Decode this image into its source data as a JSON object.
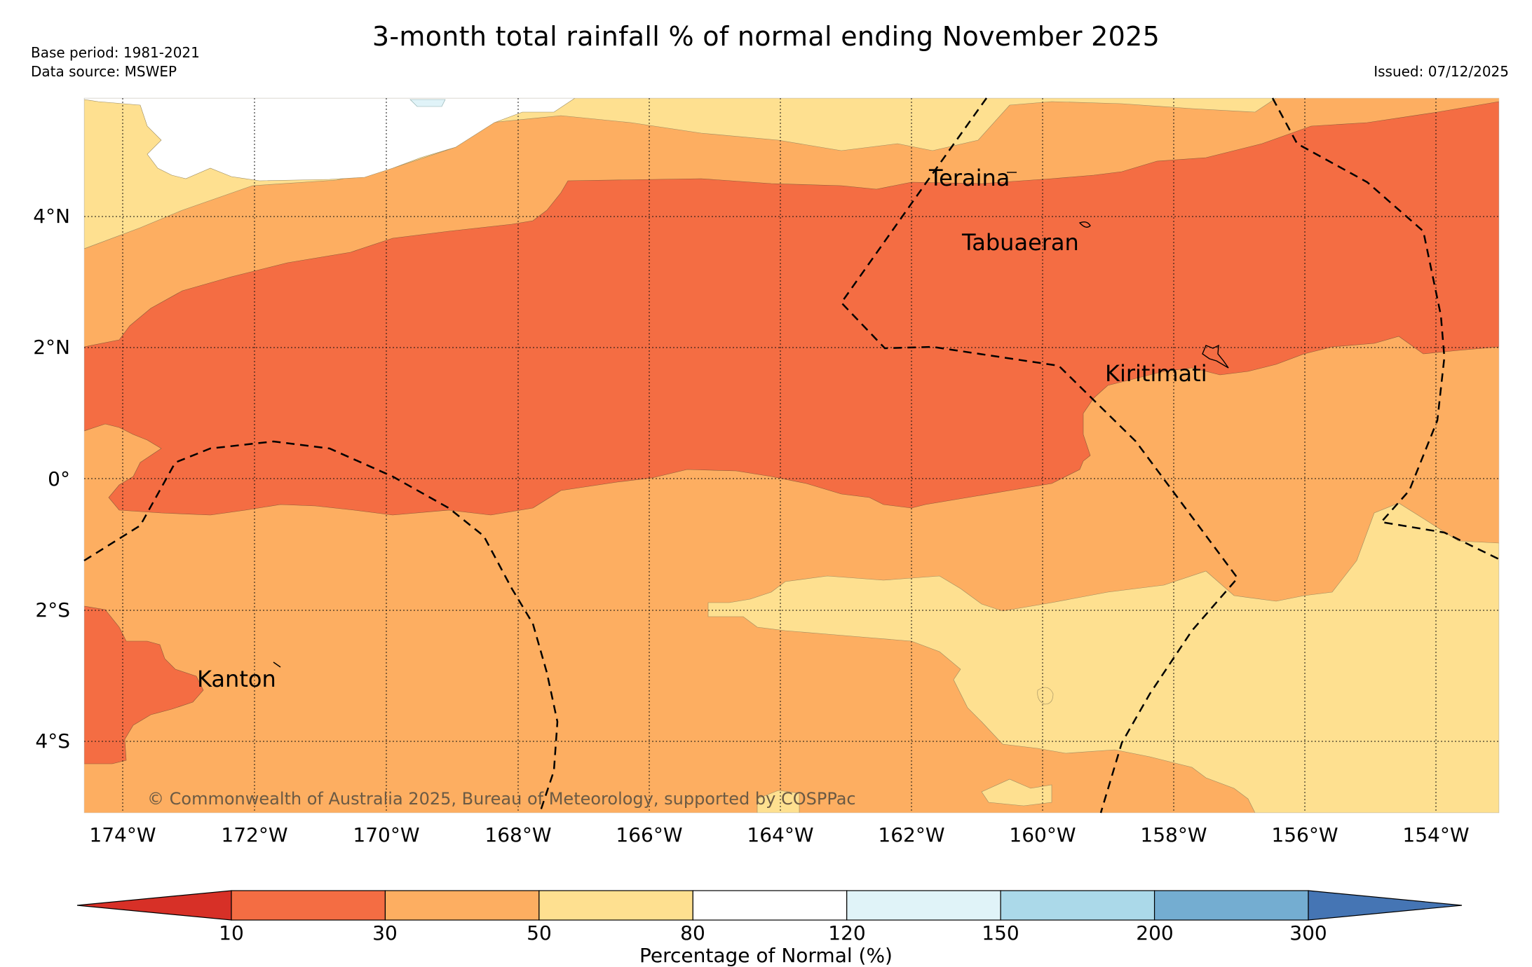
{
  "title": "3-month total rainfall % of normal ending November 2025",
  "meta": {
    "base_period": "Base period: 1981-2021",
    "data_source": "Data source: MSWEP",
    "issued": "Issued: 07/12/2025"
  },
  "map": {
    "lat_labels": [
      "4°N",
      "2°N",
      "0°",
      "2°S",
      "4°S"
    ],
    "lon_labels": [
      "174°W",
      "172°W",
      "170°W",
      "168°W",
      "166°W",
      "164°W",
      "162°W",
      "160°W",
      "158°W",
      "156°W",
      "154°W"
    ],
    "islands": [
      {
        "name": "Teraina"
      },
      {
        "name": "Tabuaeran"
      },
      {
        "name": "Kiritimati"
      },
      {
        "name": "Kanton"
      }
    ],
    "copyright": "© Commonwealth of Australia 2025, Bureau of Meteorology, supported by COSPPac"
  },
  "colorbar": {
    "label": "Percentage of Normal (%)",
    "ticks": [
      "10",
      "30",
      "50",
      "80",
      "120",
      "150",
      "200",
      "300"
    ],
    "colors": [
      "#d73027",
      "#f46d43",
      "#fdae61",
      "#fee090",
      "#ffffff",
      "#e0f3f8",
      "#abd9e9",
      "#74add1",
      "#4575b4"
    ]
  },
  "colors": {
    "very_dry": "#f46d43",
    "dry": "#fdae61",
    "below": "#fee090",
    "normal": "#ffffff",
    "wet": "#e0f3f8"
  }
}
